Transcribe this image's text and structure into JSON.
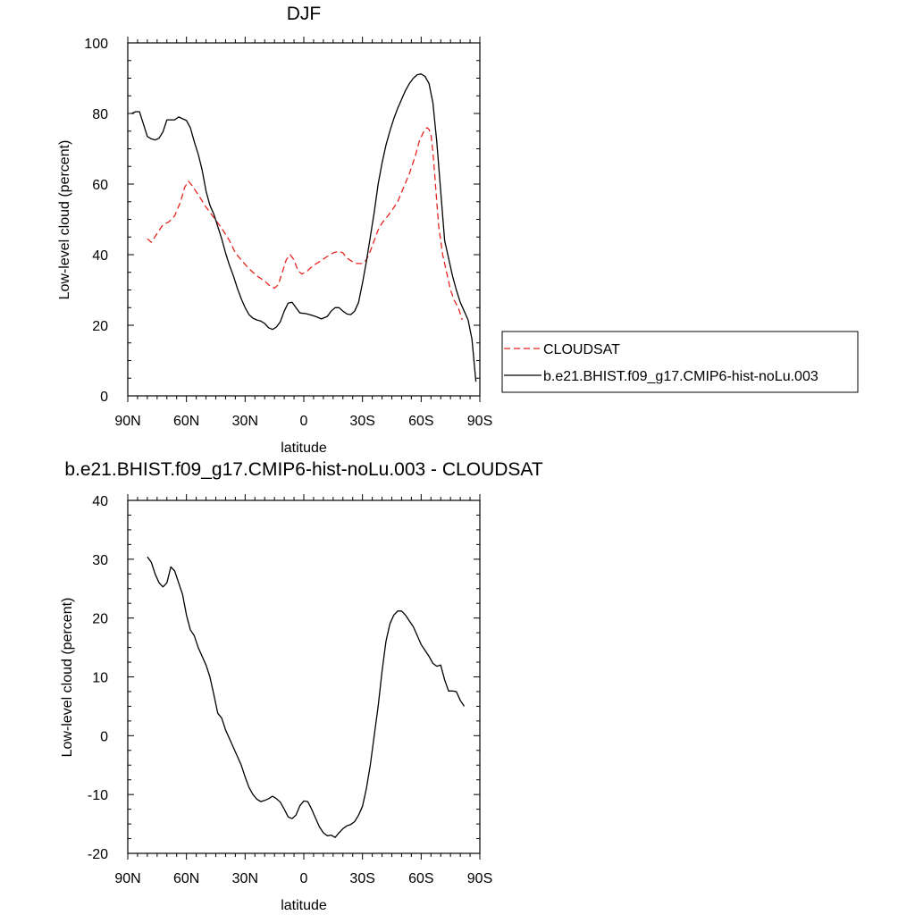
{
  "chart_data": [
    {
      "type": "line",
      "title": "DJF",
      "xlabel": "latitude",
      "ylabel": "Low-level cloud (percent)",
      "xlim": [
        90,
        -90
      ],
      "ylim": [
        0,
        100
      ],
      "x_ticks": [
        {
          "value": 90,
          "label": "90N"
        },
        {
          "value": 60,
          "label": "60N"
        },
        {
          "value": 30,
          "label": "30N"
        },
        {
          "value": 0,
          "label": "0"
        },
        {
          "value": -30,
          "label": "30S"
        },
        {
          "value": -60,
          "label": "60S"
        },
        {
          "value": -90,
          "label": "90S"
        }
      ],
      "y_ticks": [
        0,
        20,
        40,
        60,
        80,
        100
      ],
      "legend_position": "right",
      "series": [
        {
          "name": "CLOUDSAT",
          "color": "#e8231e",
          "style": "dashed",
          "points": [
            [
              80,
              44.5
            ],
            [
              78,
              43.5
            ],
            [
              75,
              46
            ],
            [
              72,
              48.5
            ],
            [
              69,
              49.3
            ],
            [
              66,
              51
            ],
            [
              63,
              55
            ],
            [
              61,
              59
            ],
            [
              59,
              60.8
            ],
            [
              57,
              59.5
            ],
            [
              54,
              57
            ],
            [
              50,
              53.5
            ],
            [
              46,
              50.5
            ],
            [
              42,
              47.5
            ],
            [
              38,
              44
            ],
            [
              35,
              40.5
            ],
            [
              32,
              38.5
            ],
            [
              28,
              36
            ],
            [
              24,
              34
            ],
            [
              20,
              32.5
            ],
            [
              17,
              31
            ],
            [
              15,
              30.5
            ],
            [
              13,
              31.5
            ],
            [
              11,
              35
            ],
            [
              9,
              38.5
            ],
            [
              7,
              40
            ],
            [
              5,
              38.5
            ],
            [
              3,
              35.5
            ],
            [
              1,
              34.5
            ],
            [
              -2,
              35.5
            ],
            [
              -5,
              37
            ],
            [
              -8,
              38
            ],
            [
              -12,
              39.5
            ],
            [
              -15,
              40.5
            ],
            [
              -18,
              41
            ],
            [
              -20,
              40.5
            ],
            [
              -22,
              39
            ],
            [
              -25,
              38
            ],
            [
              -27,
              37.5
            ],
            [
              -30,
              37.5
            ],
            [
              -32,
              38.5
            ],
            [
              -34,
              41
            ],
            [
              -36,
              44
            ],
            [
              -38,
              47
            ],
            [
              -40,
              49
            ],
            [
              -43,
              51
            ],
            [
              -45,
              52.5
            ],
            [
              -48,
              55
            ],
            [
              -51,
              59
            ],
            [
              -54,
              63
            ],
            [
              -57,
              68
            ],
            [
              -59,
              72
            ],
            [
              -61,
              74.5
            ],
            [
              -63,
              76
            ],
            [
              -64,
              75.5
            ],
            [
              -65,
              74
            ],
            [
              -66,
              69
            ],
            [
              -67,
              62
            ],
            [
              -68,
              55
            ],
            [
              -69,
              48
            ],
            [
              -70,
              44
            ],
            [
              -71,
              40
            ],
            [
              -73,
              35
            ],
            [
              -75,
              30
            ],
            [
              -77,
              27
            ],
            [
              -79,
              25
            ],
            [
              -81,
              21.5
            ]
          ]
        },
        {
          "name": "b.e21.BHIST.f09_g17.CMIP6-hist-noLu.003",
          "color": "#000000",
          "style": "solid",
          "points": [
            [
              88,
              80
            ],
            [
              86,
              80.5
            ],
            [
              84,
              80.5
            ],
            [
              82,
              77
            ],
            [
              80,
              73.5
            ],
            [
              78,
              72.8
            ],
            [
              76,
              72.5
            ],
            [
              74,
              73
            ],
            [
              72,
              74.8
            ],
            [
              70,
              78.2
            ],
            [
              68,
              78.2
            ],
            [
              66,
              78.2
            ],
            [
              64,
              79
            ],
            [
              62,
              78.5
            ],
            [
              60,
              78
            ],
            [
              58,
              76
            ],
            [
              56,
              72
            ],
            [
              54,
              68.5
            ],
            [
              52,
              64
            ],
            [
              50,
              58
            ],
            [
              48,
              54
            ],
            [
              46,
              51.5
            ],
            [
              44,
              48
            ],
            [
              42,
              44.5
            ],
            [
              40,
              40.5
            ],
            [
              38,
              37
            ],
            [
              36,
              34
            ],
            [
              34,
              30.5
            ],
            [
              32,
              27.5
            ],
            [
              30,
              25
            ],
            [
              28,
              23
            ],
            [
              26,
              22
            ],
            [
              24,
              21.5
            ],
            [
              22,
              21.2
            ],
            [
              20,
              20.5
            ],
            [
              18,
              19.3
            ],
            [
              16,
              18.8
            ],
            [
              14,
              19.5
            ],
            [
              12,
              21
            ],
            [
              10,
              24
            ],
            [
              8,
              26.3
            ],
            [
              6,
              26.5
            ],
            [
              4,
              25
            ],
            [
              2,
              23.5
            ],
            [
              -1,
              23.3
            ],
            [
              -3,
              23
            ],
            [
              -6,
              22.5
            ],
            [
              -9,
              21.8
            ],
            [
              -12,
              22.5
            ],
            [
              -14,
              24
            ],
            [
              -16,
              25
            ],
            [
              -18,
              25
            ],
            [
              -20,
              24
            ],
            [
              -22,
              23.2
            ],
            [
              -24,
              23
            ],
            [
              -26,
              24
            ],
            [
              -28,
              26.5
            ],
            [
              -30,
              32
            ],
            [
              -32,
              38
            ],
            [
              -34,
              45
            ],
            [
              -36,
              52
            ],
            [
              -38,
              60
            ],
            [
              -40,
              66
            ],
            [
              -42,
              71
            ],
            [
              -44,
              75
            ],
            [
              -46,
              78.5
            ],
            [
              -48,
              81.5
            ],
            [
              -50,
              84
            ],
            [
              -52,
              86.5
            ],
            [
              -54,
              88.5
            ],
            [
              -56,
              90
            ],
            [
              -58,
              91
            ],
            [
              -60,
              91.2
            ],
            [
              -62,
              90.5
            ],
            [
              -64,
              88.5
            ],
            [
              -66,
              83
            ],
            [
              -68,
              72
            ],
            [
              -70,
              58
            ],
            [
              -72,
              44
            ],
            [
              -74,
              39
            ],
            [
              -76,
              34
            ],
            [
              -78,
              30
            ],
            [
              -80,
              26.5
            ],
            [
              -82,
              24
            ],
            [
              -84,
              21.5
            ],
            [
              -86,
              16
            ],
            [
              -88,
              4
            ]
          ]
        }
      ]
    },
    {
      "type": "line",
      "title": "b.e21.BHIST.f09_g17.CMIP6-hist-noLu.003 - CLOUDSAT",
      "xlabel": "latitude",
      "ylabel": "Low-level cloud (percent)",
      "xlim": [
        90,
        -90
      ],
      "ylim": [
        -20,
        40
      ],
      "x_ticks": [
        {
          "value": 90,
          "label": "90N"
        },
        {
          "value": 60,
          "label": "60N"
        },
        {
          "value": 30,
          "label": "30N"
        },
        {
          "value": 0,
          "label": "0"
        },
        {
          "value": -30,
          "label": "30S"
        },
        {
          "value": -60,
          "label": "60S"
        },
        {
          "value": -90,
          "label": "90S"
        }
      ],
      "y_ticks": [
        -20,
        -10,
        0,
        10,
        20,
        30,
        40
      ],
      "series": [
        {
          "color": "#000000",
          "style": "solid",
          "points": [
            [
              80,
              30.4
            ],
            [
              78,
              29.5
            ],
            [
              76,
              27.5
            ],
            [
              74,
              26
            ],
            [
              72,
              25.3
            ],
            [
              70,
              26
            ],
            [
              68,
              28.7
            ],
            [
              66,
              28
            ],
            [
              64,
              26
            ],
            [
              62,
              24
            ],
            [
              60,
              20.5
            ],
            [
              58,
              18
            ],
            [
              56,
              17
            ],
            [
              54,
              15
            ],
            [
              52,
              13.5
            ],
            [
              50,
              12
            ],
            [
              48,
              10
            ],
            [
              46,
              7
            ],
            [
              44,
              3.8
            ],
            [
              42,
              3
            ],
            [
              40,
              1
            ],
            [
              38,
              -0.5
            ],
            [
              36,
              -2
            ],
            [
              34,
              -3.5
            ],
            [
              32,
              -5
            ],
            [
              30,
              -7
            ],
            [
              28,
              -8.8
            ],
            [
              26,
              -10
            ],
            [
              24,
              -10.8
            ],
            [
              22,
              -11.2
            ],
            [
              20,
              -11
            ],
            [
              18,
              -10.7
            ],
            [
              16,
              -10.3
            ],
            [
              14,
              -10.7
            ],
            [
              12,
              -11.3
            ],
            [
              10,
              -12.5
            ],
            [
              8,
              -13.8
            ],
            [
              6,
              -14.1
            ],
            [
              4,
              -13.5
            ],
            [
              2,
              -11.9
            ],
            [
              0,
              -11.1
            ],
            [
              -2,
              -11.2
            ],
            [
              -4,
              -12.5
            ],
            [
              -6,
              -14
            ],
            [
              -8,
              -15.5
            ],
            [
              -10,
              -16.5
            ],
            [
              -12,
              -17
            ],
            [
              -14,
              -16.9
            ],
            [
              -16,
              -17.3
            ],
            [
              -18,
              -16.5
            ],
            [
              -20,
              -15.8
            ],
            [
              -22,
              -15.3
            ],
            [
              -24,
              -15.1
            ],
            [
              -26,
              -14.6
            ],
            [
              -28,
              -13.5
            ],
            [
              -30,
              -12
            ],
            [
              -32,
              -9
            ],
            [
              -34,
              -5
            ],
            [
              -36,
              0
            ],
            [
              -38,
              5
            ],
            [
              -40,
              11
            ],
            [
              -42,
              16
            ],
            [
              -44,
              19
            ],
            [
              -46,
              20.5
            ],
            [
              -48,
              21.2
            ],
            [
              -50,
              21.2
            ],
            [
              -52,
              20.5
            ],
            [
              -54,
              19.5
            ],
            [
              -56,
              18.5
            ],
            [
              -58,
              17
            ],
            [
              -60,
              15.5
            ],
            [
              -62,
              14.5
            ],
            [
              -64,
              13.5
            ],
            [
              -66,
              12.3
            ],
            [
              -68,
              11.8
            ],
            [
              -70,
              12
            ],
            [
              -72,
              9.5
            ],
            [
              -74,
              7.6
            ],
            [
              -76,
              7.6
            ],
            [
              -78,
              7.5
            ],
            [
              -80,
              6
            ],
            [
              -82,
              5
            ]
          ]
        }
      ]
    }
  ]
}
